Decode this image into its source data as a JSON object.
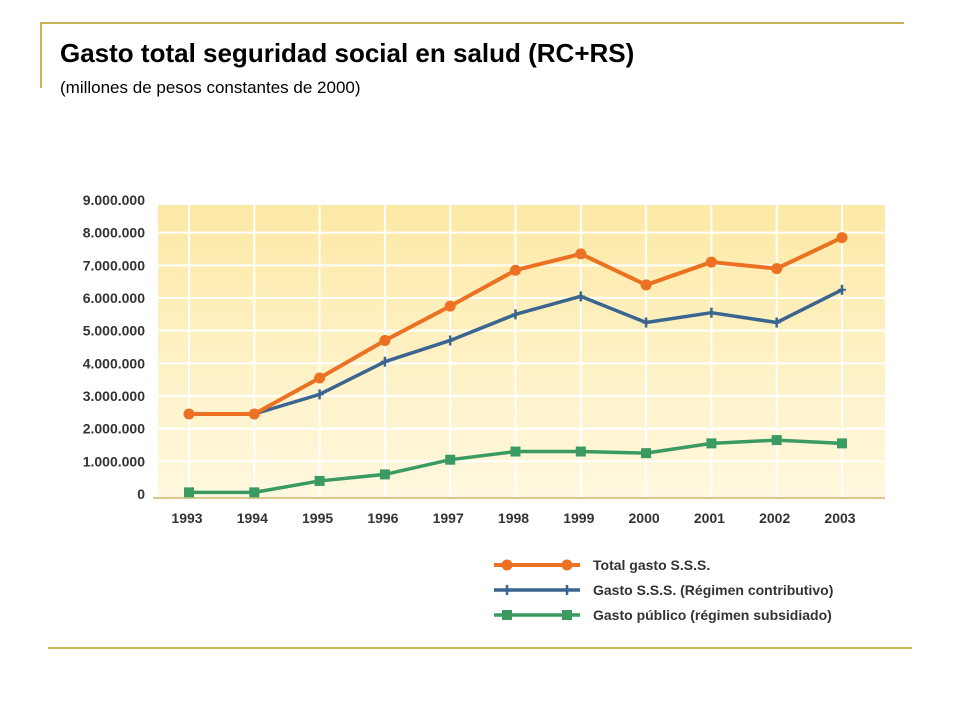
{
  "title": "Gasto total seguridad social en salud (RC+RS)",
  "subtitle": "(millones de pesos constantes de 2000)",
  "colors": {
    "rule": "#c9b458",
    "plot_top": "#fde9a6",
    "plot_bottom": "#fff8df",
    "grid": "#ffffff"
  },
  "chart_data": {
    "type": "line",
    "x": [
      "1993",
      "1994",
      "1995",
      "1996",
      "1997",
      "1998",
      "1999",
      "2000",
      "2001",
      "2002",
      "2003"
    ],
    "ylim": [
      0,
      9000000
    ],
    "yticks": [
      0,
      1000000,
      2000000,
      3000000,
      4000000,
      5000000,
      6000000,
      7000000,
      8000000,
      9000000
    ],
    "ytick_labels": [
      "0",
      "1.000.000",
      "2.000.000",
      "3.000.000",
      "4.000.000",
      "5.000.000",
      "6.000.000",
      "7.000.000",
      "8.000.000",
      "9.000.000"
    ],
    "grid": true,
    "legend_position": "bottom-right",
    "series": [
      {
        "name": "Total gasto S.S.S.",
        "color": "#ec7122",
        "marker": "circle",
        "values": [
          2450000,
          2450000,
          3550000,
          4700000,
          5750000,
          6850000,
          7350000,
          6400000,
          7100000,
          6900000,
          7850000
        ]
      },
      {
        "name": "Gasto S.S.S. (Régimen contributivo)",
        "color": "#3b6591",
        "marker": "plus",
        "values": [
          2450000,
          2450000,
          3050000,
          4050000,
          4700000,
          5500000,
          6050000,
          5250000,
          5550000,
          5250000,
          6250000
        ]
      },
      {
        "name": "Gasto público (régimen subsidiado)",
        "color": "#3a9a62",
        "marker": "square",
        "values": [
          50000,
          50000,
          400000,
          600000,
          1050000,
          1300000,
          1300000,
          1250000,
          1550000,
          1650000,
          1550000
        ]
      }
    ]
  }
}
